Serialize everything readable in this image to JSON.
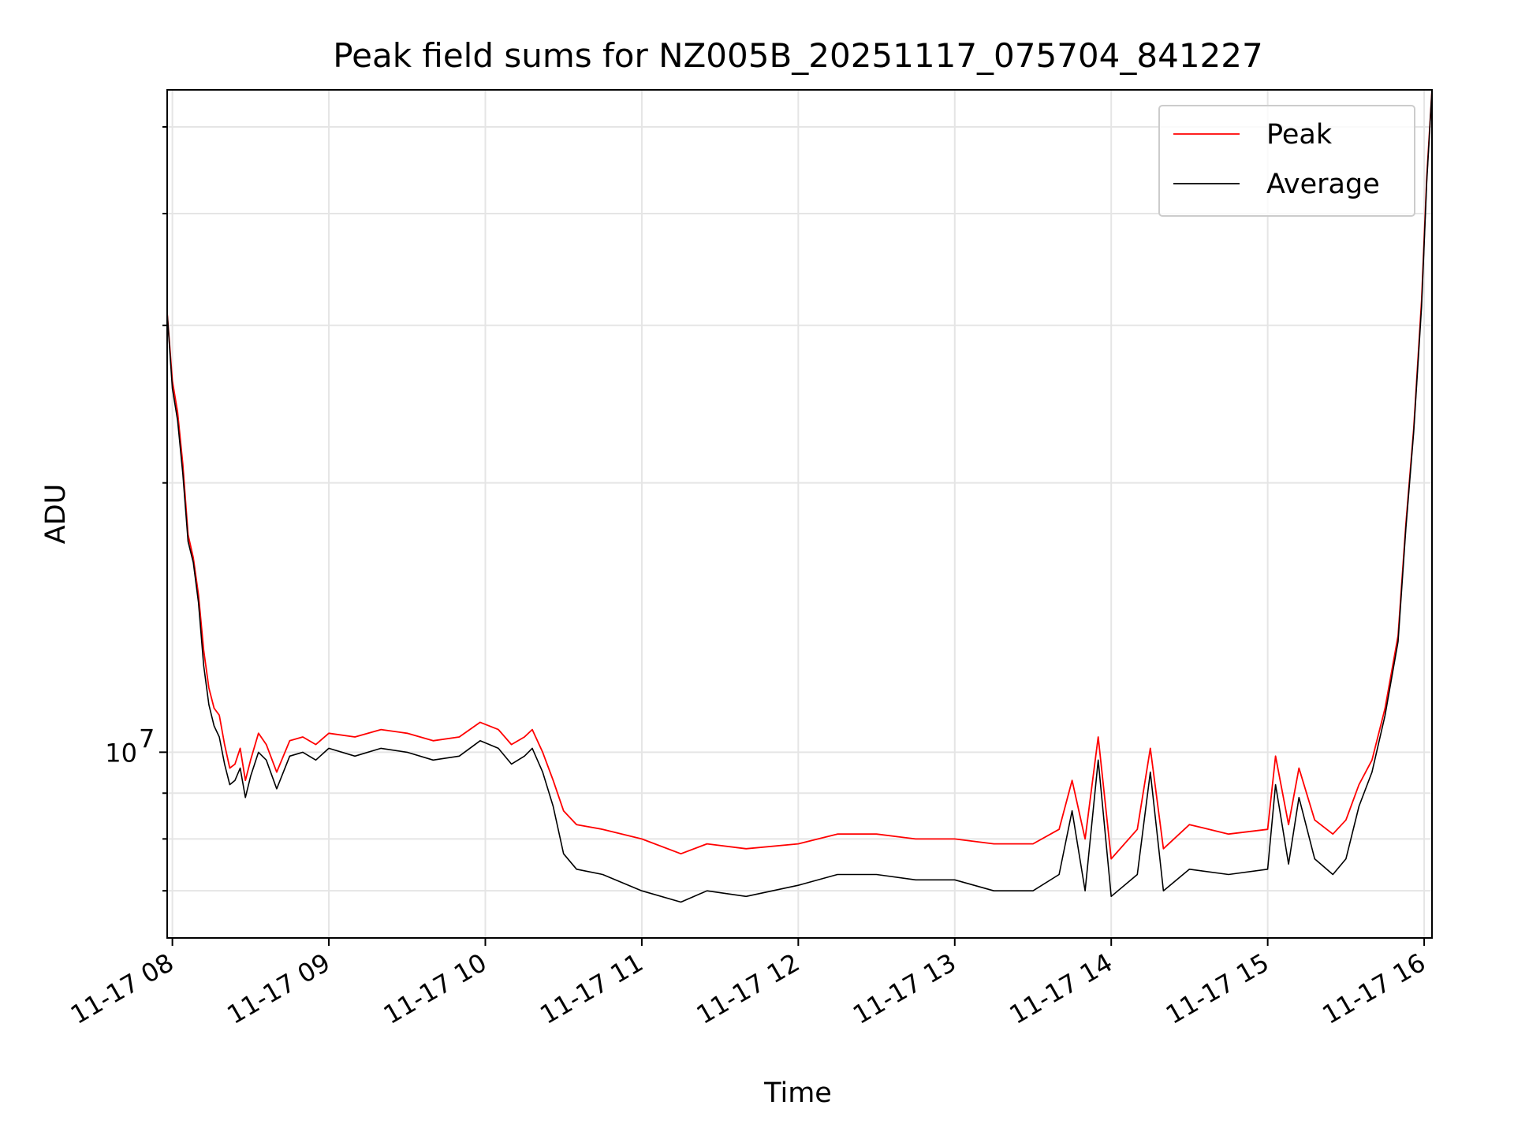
{
  "chart_data": {
    "type": "line",
    "title": "Peak field sums for NZ005B_20251117_075704_841227",
    "xlabel": "Time",
    "ylabel": "ADU",
    "yscale": "log",
    "xlim": [
      "2025-11-17 07:58",
      "2025-11-17 16:03"
    ],
    "ylim": [
      6200000,
      55000000
    ],
    "x_tick_labels": [
      "11-17 08",
      "11-17 09",
      "11-17 10",
      "11-17 11",
      "11-17 12",
      "11-17 13",
      "11-17 14",
      "11-17 15",
      "11-17 16"
    ],
    "x_tick_times": [
      "2025-11-17 08:00",
      "2025-11-17 09:00",
      "2025-11-17 10:00",
      "2025-11-17 11:00",
      "2025-11-17 12:00",
      "2025-11-17 13:00",
      "2025-11-17 14:00",
      "2025-11-17 15:00",
      "2025-11-17 16:00"
    ],
    "y_major_tick_label": "10",
    "y_major_tick_exponent": "7",
    "y_major_tick_value": 10000000,
    "grid": true,
    "legend_position": "top-right",
    "series": [
      {
        "name": "Peak",
        "color": "#ff0000",
        "x": [
          "2025-11-17 07:58",
          "2025-11-17 08:00",
          "2025-11-17 08:02",
          "2025-11-17 08:04",
          "2025-11-17 08:06",
          "2025-11-17 08:08",
          "2025-11-17 08:10",
          "2025-11-17 08:12",
          "2025-11-17 08:14",
          "2025-11-17 08:16",
          "2025-11-17 08:18",
          "2025-11-17 08:20",
          "2025-11-17 08:22",
          "2025-11-17 08:24",
          "2025-11-17 08:26",
          "2025-11-17 08:28",
          "2025-11-17 08:30",
          "2025-11-17 08:33",
          "2025-11-17 08:36",
          "2025-11-17 08:40",
          "2025-11-17 08:45",
          "2025-11-17 08:50",
          "2025-11-17 08:55",
          "2025-11-17 09:00",
          "2025-11-17 09:10",
          "2025-11-17 09:20",
          "2025-11-17 09:30",
          "2025-11-17 09:40",
          "2025-11-17 09:50",
          "2025-11-17 09:58",
          "2025-11-17 10:05",
          "2025-11-17 10:10",
          "2025-11-17 10:15",
          "2025-11-17 10:18",
          "2025-11-17 10:22",
          "2025-11-17 10:26",
          "2025-11-17 10:30",
          "2025-11-17 10:35",
          "2025-11-17 10:45",
          "2025-11-17 11:00",
          "2025-11-17 11:15",
          "2025-11-17 11:25",
          "2025-11-17 11:40",
          "2025-11-17 12:00",
          "2025-11-17 12:15",
          "2025-11-17 12:30",
          "2025-11-17 12:45",
          "2025-11-17 13:00",
          "2025-11-17 13:15",
          "2025-11-17 13:30",
          "2025-11-17 13:40",
          "2025-11-17 13:45",
          "2025-11-17 13:50",
          "2025-11-17 13:55",
          "2025-11-17 14:00",
          "2025-11-17 14:10",
          "2025-11-17 14:15",
          "2025-11-17 14:20",
          "2025-11-17 14:30",
          "2025-11-17 14:45",
          "2025-11-17 15:00",
          "2025-11-17 15:03",
          "2025-11-17 15:08",
          "2025-11-17 15:12",
          "2025-11-17 15:18",
          "2025-11-17 15:25",
          "2025-11-17 15:30",
          "2025-11-17 15:35",
          "2025-11-17 15:40",
          "2025-11-17 15:45",
          "2025-11-17 15:50",
          "2025-11-17 15:53",
          "2025-11-17 15:56",
          "2025-11-17 15:59",
          "2025-11-17 16:01",
          "2025-11-17 16:03"
        ],
        "values": [
          31000000,
          26000000,
          24000000,
          21000000,
          17500000,
          16500000,
          15000000,
          13000000,
          11800000,
          11200000,
          11000000,
          10200000,
          9600000,
          9700000,
          10100000,
          9300000,
          9800000,
          10500000,
          10200000,
          9500000,
          10300000,
          10400000,
          10200000,
          10500000,
          10400000,
          10600000,
          10500000,
          10300000,
          10400000,
          10800000,
          10600000,
          10200000,
          10400000,
          10600000,
          10000000,
          9300000,
          8600000,
          8300000,
          8200000,
          8000000,
          7700000,
          7900000,
          7800000,
          7900000,
          8100000,
          8100000,
          8000000,
          8000000,
          7900000,
          7900000,
          8200000,
          9300000,
          8000000,
          10400000,
          7600000,
          8200000,
          10100000,
          7800000,
          8300000,
          8100000,
          8200000,
          9900000,
          8300000,
          9600000,
          8400000,
          8100000,
          8400000,
          9200000,
          9800000,
          11200000,
          13500000,
          18000000,
          23000000,
          32000000,
          44000000,
          55000000
        ]
      },
      {
        "name": "Average",
        "color": "#000000",
        "x": [
          "2025-11-17 07:58",
          "2025-11-17 08:00",
          "2025-11-17 08:02",
          "2025-11-17 08:04",
          "2025-11-17 08:06",
          "2025-11-17 08:08",
          "2025-11-17 08:10",
          "2025-11-17 08:12",
          "2025-11-17 08:14",
          "2025-11-17 08:16",
          "2025-11-17 08:18",
          "2025-11-17 08:20",
          "2025-11-17 08:22",
          "2025-11-17 08:24",
          "2025-11-17 08:26",
          "2025-11-17 08:28",
          "2025-11-17 08:30",
          "2025-11-17 08:33",
          "2025-11-17 08:36",
          "2025-11-17 08:40",
          "2025-11-17 08:45",
          "2025-11-17 08:50",
          "2025-11-17 08:55",
          "2025-11-17 09:00",
          "2025-11-17 09:10",
          "2025-11-17 09:20",
          "2025-11-17 09:30",
          "2025-11-17 09:40",
          "2025-11-17 09:50",
          "2025-11-17 09:58",
          "2025-11-17 10:05",
          "2025-11-17 10:10",
          "2025-11-17 10:15",
          "2025-11-17 10:18",
          "2025-11-17 10:22",
          "2025-11-17 10:26",
          "2025-11-17 10:30",
          "2025-11-17 10:35",
          "2025-11-17 10:45",
          "2025-11-17 11:00",
          "2025-11-17 11:15",
          "2025-11-17 11:25",
          "2025-11-17 11:40",
          "2025-11-17 12:00",
          "2025-11-17 12:15",
          "2025-11-17 12:30",
          "2025-11-17 12:45",
          "2025-11-17 13:00",
          "2025-11-17 13:15",
          "2025-11-17 13:30",
          "2025-11-17 13:40",
          "2025-11-17 13:45",
          "2025-11-17 13:50",
          "2025-11-17 13:55",
          "2025-11-17 14:00",
          "2025-11-17 14:10",
          "2025-11-17 14:15",
          "2025-11-17 14:20",
          "2025-11-17 14:30",
          "2025-11-17 14:45",
          "2025-11-17 15:00",
          "2025-11-17 15:03",
          "2025-11-17 15:08",
          "2025-11-17 15:12",
          "2025-11-17 15:18",
          "2025-11-17 15:25",
          "2025-11-17 15:30",
          "2025-11-17 15:35",
          "2025-11-17 15:40",
          "2025-11-17 15:45",
          "2025-11-17 15:50",
          "2025-11-17 15:53",
          "2025-11-17 15:56",
          "2025-11-17 15:59",
          "2025-11-17 16:01",
          "2025-11-17 16:03"
        ],
        "values": [
          31000000,
          25500000,
          23500000,
          20500000,
          17200000,
          16300000,
          14700000,
          12500000,
          11300000,
          10700000,
          10400000,
          9700000,
          9200000,
          9300000,
          9600000,
          8900000,
          9400000,
          10000000,
          9800000,
          9100000,
          9900000,
          10000000,
          9800000,
          10100000,
          9900000,
          10100000,
          10000000,
          9800000,
          9900000,
          10300000,
          10100000,
          9700000,
          9900000,
          10100000,
          9500000,
          8700000,
          7700000,
          7400000,
          7300000,
          7000000,
          6800000,
          7000000,
          6900000,
          7100000,
          7300000,
          7300000,
          7200000,
          7200000,
          7000000,
          7000000,
          7300000,
          8600000,
          7000000,
          9800000,
          6900000,
          7300000,
          9500000,
          7000000,
          7400000,
          7300000,
          7400000,
          9200000,
          7500000,
          8900000,
          7600000,
          7300000,
          7600000,
          8700000,
          9500000,
          11000000,
          13300000,
          17800000,
          22800000,
          31500000,
          43500000,
          55000000
        ]
      }
    ]
  }
}
